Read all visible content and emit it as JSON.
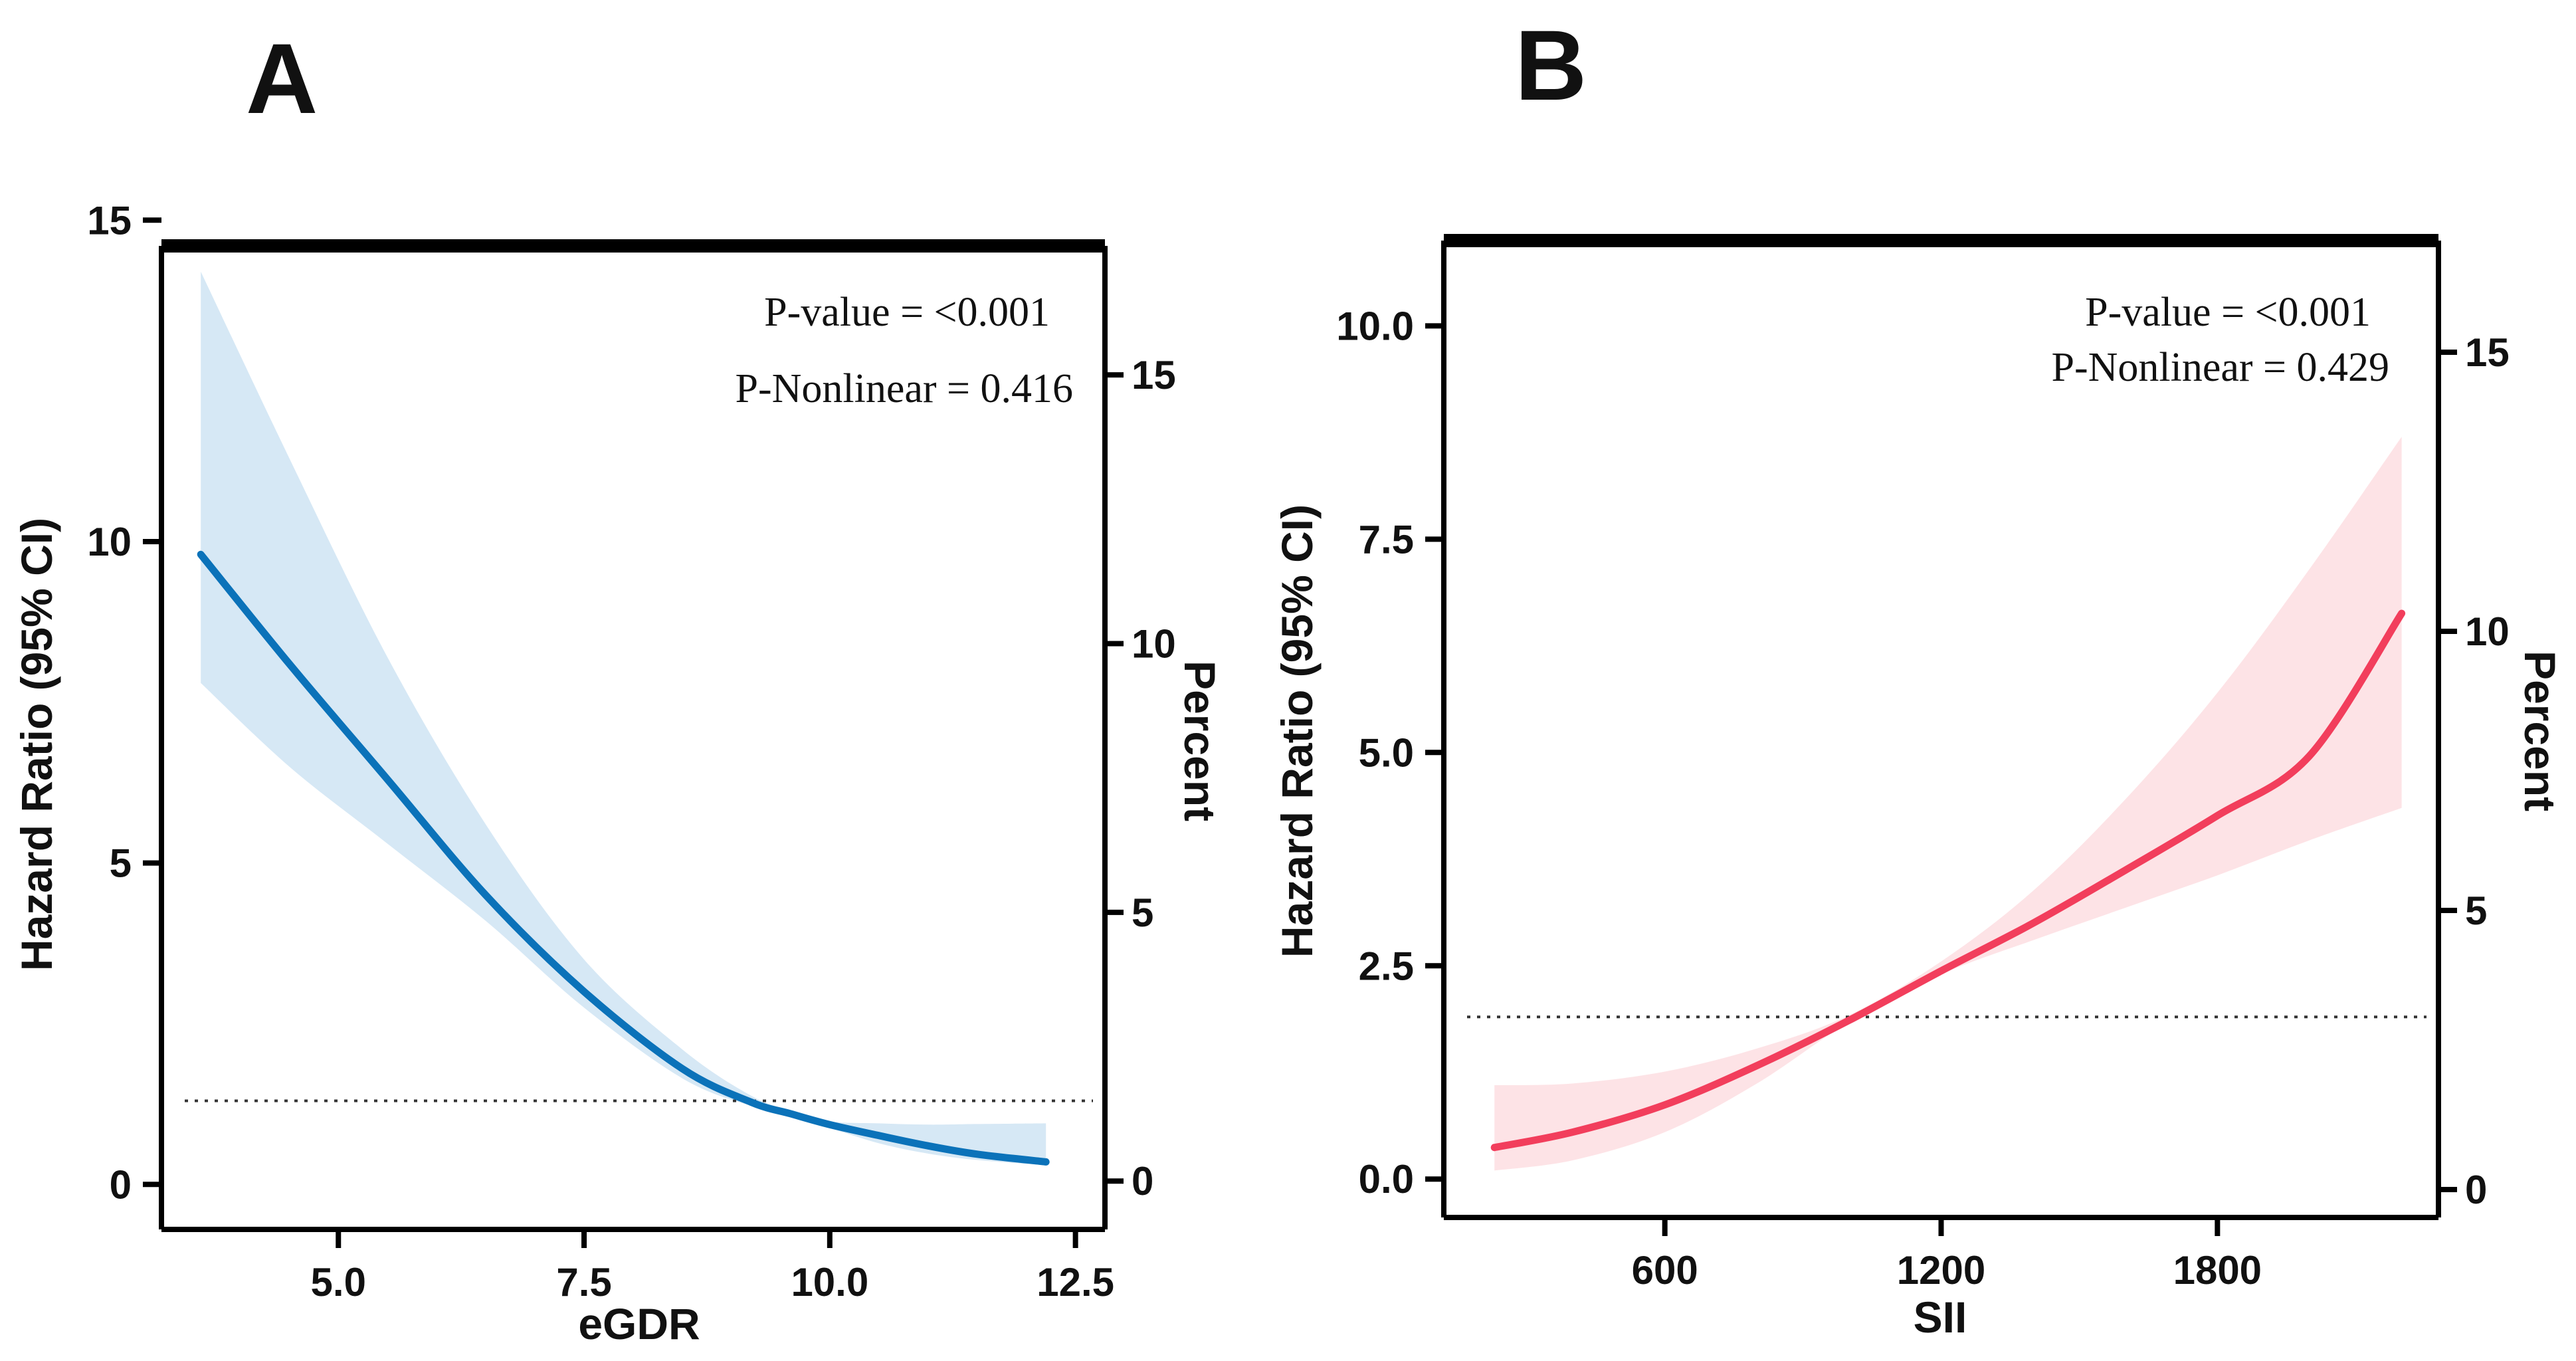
{
  "chart_data": [
    {
      "panel": "A",
      "type": "line",
      "xlabel": "eGDR",
      "ylabel": "Hazard Ratio (95% CI)",
      "y2label": "Percent",
      "annotations": [
        "P-value = <0.001",
        "P-Nonlinear = 0.416"
      ],
      "xticks": [
        5.0,
        7.5,
        10.0,
        12.5
      ],
      "xtick_labels": [
        "5.0",
        "7.5",
        "10.0",
        "12.5"
      ],
      "xlim": [
        3.2,
        12.8
      ],
      "yticks": [
        0,
        5,
        10,
        15
      ],
      "ytick_labels": [
        "0",
        "5",
        "10",
        "15"
      ],
      "ylim": [
        -0.7,
        14.6
      ],
      "y2ticks": [
        0,
        5,
        10,
        15
      ],
      "y2tick_labels": [
        "0",
        "5",
        "10",
        "15"
      ],
      "y2lim": [
        -0.9,
        17.4
      ],
      "reference_line": 1.3,
      "line_color": "#0b72b9",
      "band_color": "#d6e8f5",
      "x": [
        3.6,
        4.5,
        5.5,
        6.5,
        7.5,
        8.5,
        9.2,
        9.6,
        10.0,
        10.5,
        11.0,
        11.5,
        12.2
      ],
      "hr": [
        9.8,
        8.1,
        6.3,
        4.5,
        3.0,
        1.8,
        1.28,
        1.1,
        0.93,
        0.76,
        0.6,
        0.47,
        0.35
      ],
      "lower": [
        7.8,
        6.5,
        5.3,
        4.1,
        2.75,
        1.65,
        1.22,
        1.08,
        0.88,
        0.64,
        0.48,
        0.38,
        0.3
      ],
      "upper": [
        14.2,
        11.3,
        8.2,
        5.6,
        3.5,
        2.1,
        1.38,
        1.15,
        0.98,
        0.95,
        0.93,
        0.94,
        0.95
      ]
    },
    {
      "panel": "B",
      "type": "line",
      "xlabel": "SII",
      "ylabel": "Hazard Ratio (95% CI)",
      "y2label": "Percent",
      "annotations": [
        "P-value = <0.001",
        "P-Nonlinear = 0.429"
      ],
      "xticks": [
        600,
        1200,
        1800
      ],
      "xtick_labels": [
        "600",
        "1200",
        "1800"
      ],
      "xlim": [
        120,
        2280
      ],
      "yticks": [
        0,
        2.5,
        5,
        7.5,
        10
      ],
      "ytick_labels": [
        "0.0",
        "2.5",
        "5.0",
        "7.5",
        "10.0"
      ],
      "ylim": [
        -0.45,
        11.0
      ],
      "y2ticks": [
        0,
        5,
        10,
        15
      ],
      "y2tick_labels": [
        "0",
        "5",
        "10",
        "15"
      ],
      "y2lim": [
        -0.5,
        17.0
      ],
      "reference_line": 1.9,
      "line_color": "#f23e5c",
      "band_color": "#fde3e6",
      "x": [
        230,
        400,
        600,
        800,
        1000,
        1200,
        1400,
        1600,
        1800,
        2000,
        2200
      ],
      "hr": [
        0.37,
        0.55,
        0.87,
        1.33,
        1.86,
        2.44,
        3.0,
        3.62,
        4.26,
        4.96,
        6.63
      ],
      "lower": [
        0.1,
        0.22,
        0.55,
        1.12,
        1.84,
        2.4,
        2.8,
        3.18,
        3.56,
        3.97,
        4.35
      ],
      "upper": [
        1.1,
        1.12,
        1.26,
        1.53,
        1.92,
        2.55,
        3.38,
        4.45,
        5.7,
        7.15,
        8.7
      ]
    }
  ]
}
